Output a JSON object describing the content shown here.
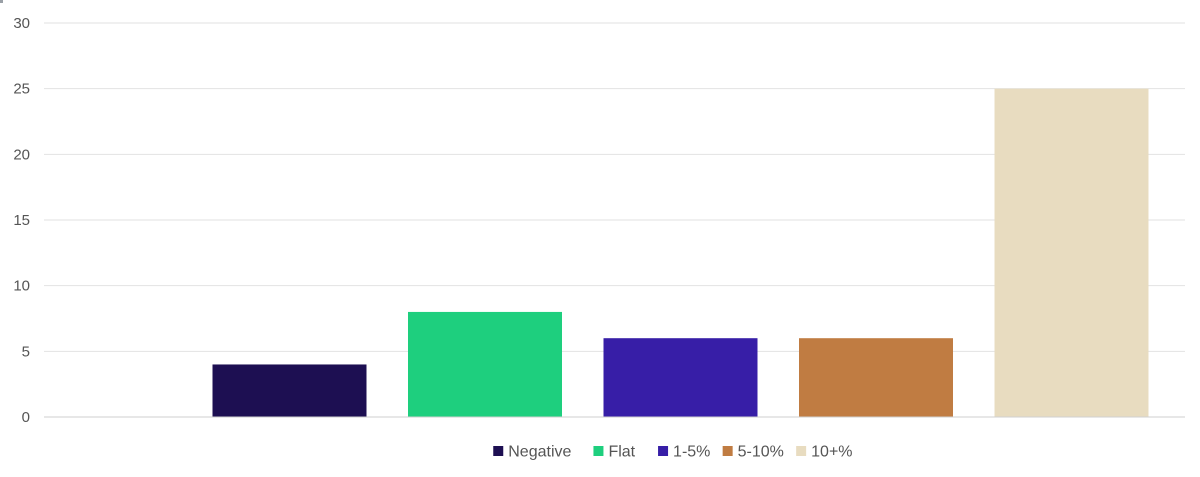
{
  "chart_data": {
    "type": "bar",
    "title": "",
    "xlabel": "",
    "ylabel": "",
    "ylim": [
      0,
      30
    ],
    "yticks": [
      0,
      5,
      10,
      15,
      20,
      25,
      30
    ],
    "grid": true,
    "legend_position": "bottom-center",
    "series": [
      {
        "name": "Negative",
        "value": 4,
        "color": "#1d0f52"
      },
      {
        "name": "Flat",
        "value": 8,
        "color": "#1ecf7e"
      },
      {
        "name": "1-5%",
        "value": 6,
        "color": "#371ea7"
      },
      {
        "name": "5-10%",
        "value": 6,
        "color": "#c07c42"
      },
      {
        "name": "10+%",
        "value": 25,
        "color": "#e8dcc0"
      }
    ]
  },
  "colors": {
    "gridline": "#e2e2e2",
    "axis_line": "#cfcfcf",
    "tick_label": "#555555",
    "legend_label": "#555555"
  }
}
